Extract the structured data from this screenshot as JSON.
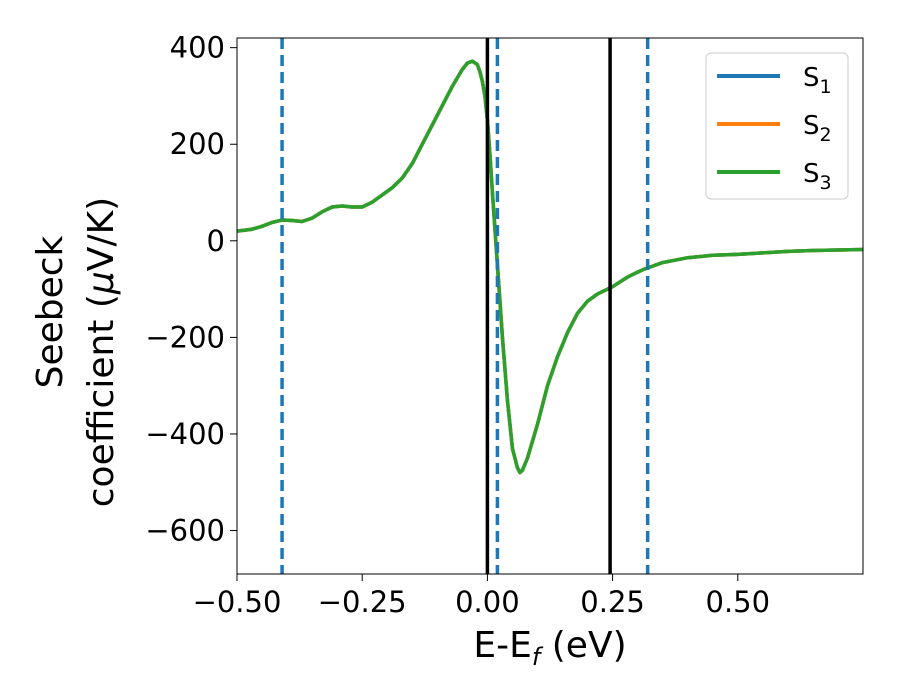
{
  "chart_data": {
    "type": "line",
    "xlabel": "E-E",
    "xlabel_sub": "f",
    "xlabel_unit": " (eV)",
    "ylabel_line1": "Seebeck",
    "ylabel_line2_pre": "coefficient  (",
    "ylabel_mu": "μ",
    "ylabel_line2_post": "V/K)",
    "xlim": [
      -0.5,
      0.75
    ],
    "ylim": [
      -690,
      420
    ],
    "x_ticks": [
      -0.5,
      -0.25,
      0.0,
      0.25,
      0.5
    ],
    "x_tick_labels": [
      "−0.50",
      "−0.25",
      "0.00",
      "0.25",
      "0.50"
    ],
    "y_ticks": [
      400,
      200,
      0,
      -200,
      -400,
      -600
    ],
    "y_tick_labels": [
      "400",
      "200",
      "0",
      "−200",
      "−400",
      "−600"
    ],
    "legend_position": "top-right",
    "series": [
      {
        "name": "S",
        "sub": "1",
        "color": "#1f77b4"
      },
      {
        "name": "S",
        "sub": "2",
        "color": "#ff7f0e"
      },
      {
        "name": "S",
        "sub": "3",
        "color": "#2ca02c"
      }
    ],
    "x": [
      -0.5,
      -0.47,
      -0.45,
      -0.43,
      -0.41,
      -0.39,
      -0.37,
      -0.35,
      -0.33,
      -0.31,
      -0.29,
      -0.27,
      -0.25,
      -0.23,
      -0.21,
      -0.19,
      -0.17,
      -0.15,
      -0.13,
      -0.11,
      -0.09,
      -0.07,
      -0.05,
      -0.04,
      -0.03,
      -0.02,
      -0.015,
      -0.01,
      -0.005,
      0.0,
      0.005,
      0.01,
      0.02,
      0.03,
      0.04,
      0.05,
      0.06,
      0.065,
      0.07,
      0.08,
      0.1,
      0.12,
      0.14,
      0.16,
      0.18,
      0.2,
      0.22,
      0.25,
      0.28,
      0.31,
      0.35,
      0.4,
      0.45,
      0.5,
      0.55,
      0.6,
      0.65,
      0.7,
      0.75
    ],
    "y": [
      20,
      24,
      30,
      38,
      43,
      42,
      40,
      47,
      60,
      70,
      72,
      70,
      70,
      80,
      95,
      110,
      130,
      160,
      200,
      240,
      280,
      320,
      355,
      368,
      372,
      365,
      350,
      330,
      300,
      250,
      180,
      100,
      -50,
      -200,
      -330,
      -430,
      -470,
      -480,
      -475,
      -450,
      -380,
      -300,
      -240,
      -190,
      -150,
      -125,
      -110,
      -95,
      -75,
      -60,
      -45,
      -35,
      -30,
      -28,
      -25,
      -22,
      -20,
      -19,
      -18
    ],
    "vlines_solid": [
      0.0,
      0.245
    ],
    "vlines_dashed": [
      -0.41,
      0.02,
      0.32
    ],
    "vline_solid_color": "#000000",
    "vline_dashed_color": "#1f77b4"
  }
}
